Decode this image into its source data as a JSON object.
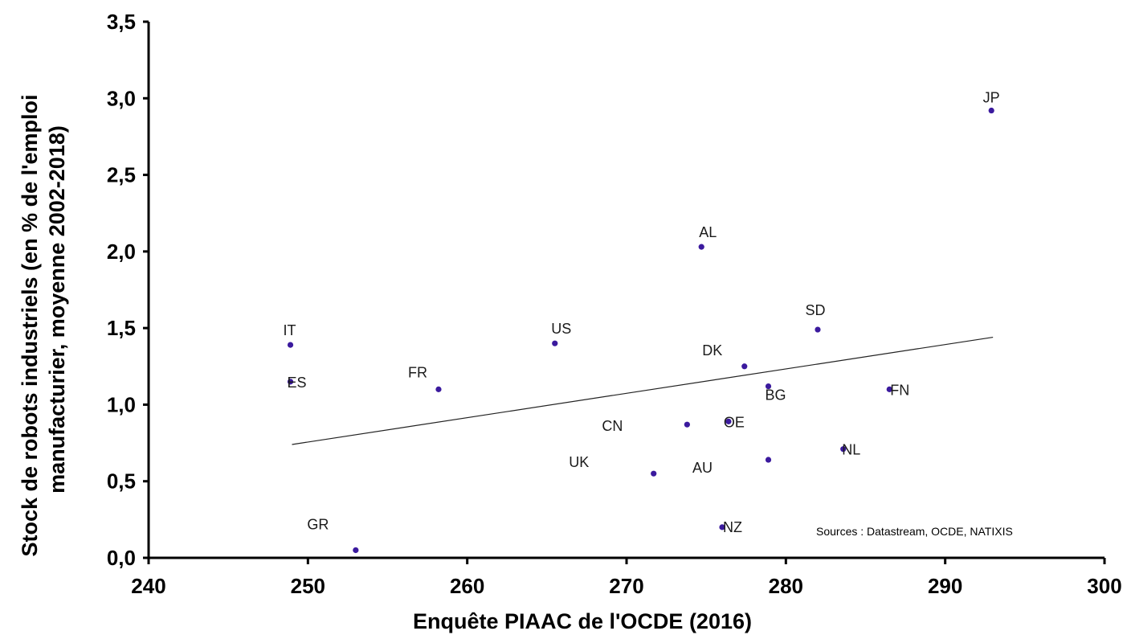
{
  "chart_data": {
    "type": "scatter",
    "xlabel": "Enquête PIAAC de l'OCDE (2016)",
    "ylabel_lines": [
      "Stock de robots industriels (en % de l'emploi",
      "manufacturier, moyenne 2002-2018)"
    ],
    "xlim": [
      240,
      300
    ],
    "ylim": [
      0,
      3.5
    ],
    "x_ticks": [
      "240",
      "250",
      "260",
      "270",
      "280",
      "290",
      "300"
    ],
    "y_ticks": [
      "0,0",
      "0,5",
      "1,0",
      "1,5",
      "2,0",
      "2,5",
      "3,0",
      "3,5"
    ],
    "grid": false,
    "point_color": "#3b1a9e",
    "trendline": {
      "x_start": 249,
      "x_end": 293,
      "y_start": 0.74,
      "y_end": 1.44
    },
    "points": [
      {
        "label": "JP",
        "x": 292.9,
        "y": 2.92
      },
      {
        "label": "AL",
        "x": 274.7,
        "y": 2.03
      },
      {
        "label": "SD",
        "x": 282.0,
        "y": 1.49
      },
      {
        "label": "IT",
        "x": 248.9,
        "y": 1.39
      },
      {
        "label": "US",
        "x": 265.5,
        "y": 1.4
      },
      {
        "label": "DK",
        "x": 277.4,
        "y": 1.25
      },
      {
        "label": "ES",
        "x": 248.9,
        "y": 1.15
      },
      {
        "label": "FR",
        "x": 258.2,
        "y": 1.1
      },
      {
        "label": "BG",
        "x": 278.9,
        "y": 1.12
      },
      {
        "label": "FN",
        "x": 286.5,
        "y": 1.1
      },
      {
        "label": "CN",
        "x": 273.8,
        "y": 0.87
      },
      {
        "label": "OE",
        "x": 276.4,
        "y": 0.89
      },
      {
        "label": "NL",
        "x": 283.6,
        "y": 0.71
      },
      {
        "label": "AU",
        "x": 278.9,
        "y": 0.64
      },
      {
        "label": "UK",
        "x": 271.7,
        "y": 0.55
      },
      {
        "label": "NZ",
        "x": 276.0,
        "y": 0.2
      },
      {
        "label": "GR",
        "x": 253.0,
        "y": 0.05
      }
    ],
    "annotation": "Sources : Datastream, OCDE, NATIXIS"
  }
}
